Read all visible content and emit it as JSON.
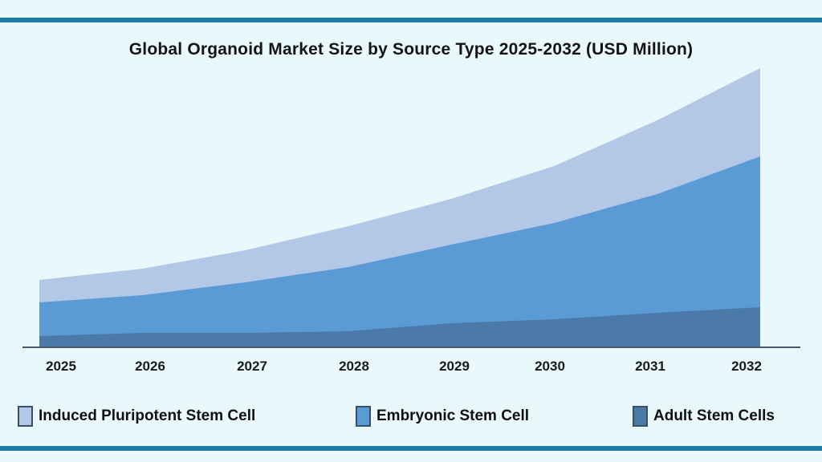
{
  "page": {
    "background_color": "#e8f8fb",
    "accent_color": "#1b7da4"
  },
  "chart_data": {
    "type": "area",
    "stacked": true,
    "title": "Global Organoid Market Size by Source Type 2025-2032 (USD Million)",
    "categories": [
      "2025",
      "2026",
      "2027",
      "2028",
      "2029",
      "2030",
      "2031",
      "2032"
    ],
    "series": [
      {
        "name": "Adult Stem Cells",
        "color": "#4b7aa9",
        "values": [
          140,
          180,
          180,
          200,
          300,
          350,
          430,
          500
        ]
      },
      {
        "name": "Embryonic Stem Cell",
        "color": "#5b9bd5",
        "values": [
          420,
          470,
          630,
          800,
          980,
          1200,
          1480,
          1880
        ]
      },
      {
        "name": "Induced Pluripotent Stem Cell",
        "color": "#b3c7e6",
        "values": [
          280,
          330,
          400,
          510,
          570,
          710,
          920,
          1100
        ]
      }
    ],
    "totals": [
      840,
      980,
      1210,
      1510,
      1850,
      2260,
      2830,
      3480
    ],
    "xlabel": "",
    "ylabel": "",
    "ylim": [
      0,
      3530
    ],
    "y_axis_visible": false,
    "gridlines": false,
    "legend_position": "bottom",
    "axis_color": "#46586a"
  },
  "legend": {
    "items": [
      {
        "label": "Induced Pluripotent Stem Cell",
        "color": "#b3c7e6"
      },
      {
        "label": "Embryonic Stem Cell",
        "color": "#5b9bd5"
      },
      {
        "label": "Adult Stem Cells",
        "color": "#4b7aa9"
      }
    ]
  }
}
